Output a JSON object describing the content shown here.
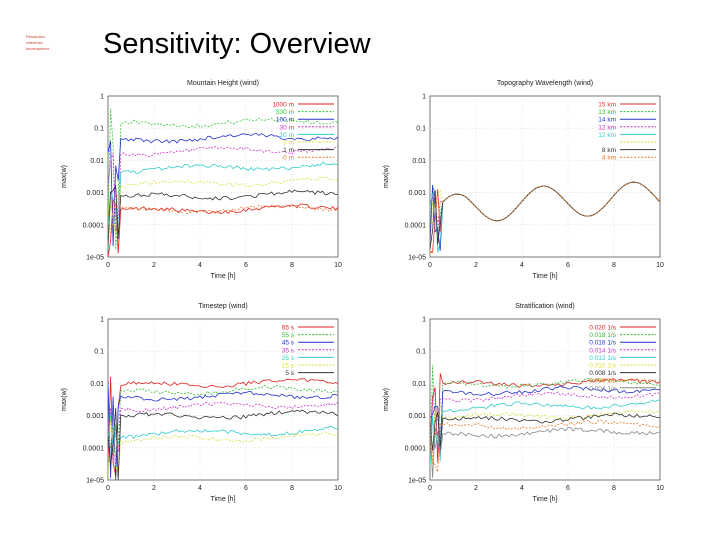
{
  "page": {
    "title": "Sensitivity: Overview",
    "logo_lines": [
      "Resolution",
      "reference",
      "development"
    ]
  },
  "chart_data": [
    {
      "type": "line",
      "title": "Mountain Height (wind)",
      "xlabel": "Time [h]",
      "ylabel": "max(w)",
      "xlim": [
        0,
        10
      ],
      "ylim": [
        1e-05,
        1
      ],
      "yscale": "log",
      "xticks": [
        "0",
        "2",
        "4",
        "6",
        "8",
        "10"
      ],
      "yticks": [
        "1e-05",
        "0.0001",
        "0.001",
        "0.01",
        "0.1",
        "1"
      ],
      "grid": true,
      "legend_position": "top-right",
      "series": [
        {
          "name": "1000 m",
          "color": "#dd2222",
          "level": 0.0003
        },
        {
          "name": "330 m",
          "color": "#33cc33",
          "level": 0.15
        },
        {
          "name": "100 m",
          "color": "#2233cc",
          "level": 0.05
        },
        {
          "name": "30 m",
          "color": "#cc33cc",
          "level": 0.02
        },
        {
          "name": "10 m",
          "color": "#33cccc",
          "level": 0.006
        },
        {
          "name": "3 m",
          "color": "#dddd33",
          "level": 0.002
        },
        {
          "name": "1 m",
          "color": "#333333",
          "level": 0.0008
        },
        {
          "name": "0 m",
          "color": "#ee7722",
          "level": 0.0003
        }
      ]
    },
    {
      "type": "line",
      "title": "Topography Wavelength (wind)",
      "xlabel": "Time [h]",
      "ylabel": "max(w)",
      "xlim": [
        0,
        10
      ],
      "ylim": [
        1e-05,
        1
      ],
      "yscale": "log",
      "xticks": [
        "0",
        "2",
        "4",
        "6",
        "8",
        "10"
      ],
      "yticks": [
        "1e-05",
        "0.0001",
        "0.001",
        "0.01",
        "0.1",
        "1"
      ],
      "grid": true,
      "legend_position": "top-right",
      "series": [
        {
          "name": "15 km",
          "color": "#dd3333",
          "level": 0.0005
        },
        {
          "name": "13 km",
          "color": "#33bb33",
          "level": 0.0005
        },
        {
          "name": "14 km",
          "color": "#2233cc",
          "level": 0.0005
        },
        {
          "name": "12 km",
          "color": "#cc33cc",
          "level": 0.0005
        },
        {
          "name": "12 km",
          "color": "#33cccc",
          "level": 0.0005
        },
        {
          "name": "",
          "color": "#dddd33",
          "level": 0.0005
        },
        {
          "name": "8 km",
          "color": "#333333",
          "level": 0.0005
        },
        {
          "name": "4 km",
          "color": "#ee7722",
          "level": 0.0005
        }
      ]
    },
    {
      "type": "line",
      "title": "Timestep (wind)",
      "xlabel": "Time [h]",
      "ylabel": "max(w)",
      "xlim": [
        0,
        10
      ],
      "ylim": [
        1e-05,
        1
      ],
      "yscale": "log",
      "xticks": [
        "0",
        "2",
        "4",
        "6",
        "8",
        "10"
      ],
      "yticks": [
        "1e-05",
        "0.0001",
        "0.001",
        "0.01",
        "0.1",
        "1"
      ],
      "grid": true,
      "legend_position": "top-right",
      "series": [
        {
          "name": "65 s",
          "color": "#dd2222",
          "level": 0.01
        },
        {
          "name": "55 s",
          "color": "#33bb33",
          "level": 0.006
        },
        {
          "name": "45 s",
          "color": "#2233cc",
          "level": 0.004
        },
        {
          "name": "35 s",
          "color": "#cc33cc",
          "level": 0.002
        },
        {
          "name": "25 s",
          "color": "#33cccc",
          "level": 0.0003
        },
        {
          "name": "15 s",
          "color": "#dddd33",
          "level": 0.0002
        },
        {
          "name": "5 s",
          "color": "#333333",
          "level": 0.001
        }
      ]
    },
    {
      "type": "line",
      "title": "Stratification (wind)",
      "xlabel": "Time [h]",
      "ylabel": "max(w)",
      "xlim": [
        0,
        10
      ],
      "ylim": [
        1e-05,
        1
      ],
      "yscale": "log",
      "xticks": [
        "0",
        "2",
        "4",
        "6",
        "8",
        "10"
      ],
      "yticks": [
        "1e-05",
        "0.0001",
        "0.001",
        "0.01",
        "0.1",
        "1"
      ],
      "grid": true,
      "legend_position": "top-right",
      "series": [
        {
          "name": "0.020 1/s",
          "color": "#dd2222",
          "level": 0.01
        },
        {
          "name": "0.018 1/s",
          "color": "#33bb33",
          "level": 0.01
        },
        {
          "name": "0.016 1/s",
          "color": "#2233cc",
          "level": 0.006
        },
        {
          "name": "0.014 1/s",
          "color": "#cc33cc",
          "level": 0.004
        },
        {
          "name": "0.012 1/s",
          "color": "#33cccc",
          "level": 0.002
        },
        {
          "name": "0.010 1/s",
          "color": "#dddd33",
          "level": 0.001
        },
        {
          "name": "0.008 1/s",
          "color": "#333333",
          "level": 0.0008
        },
        {
          "name": "0.006 1/s",
          "color": "#ee7722",
          "level": 0.0005
        },
        {
          "name": "0.004 1/s",
          "color": "#888888",
          "level": 0.0003
        }
      ]
    }
  ]
}
